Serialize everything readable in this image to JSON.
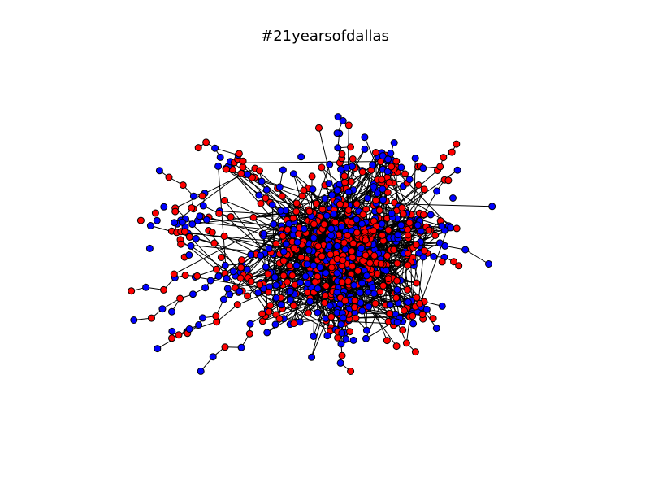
{
  "figure": {
    "title": "#21yearsofdallas"
  },
  "network": {
    "node_colors": {
      "group_a": "#ff0000",
      "group_b": "#0000ff"
    },
    "edge_color": "#000000",
    "layout": "force-directed",
    "dense_core": true
  }
}
